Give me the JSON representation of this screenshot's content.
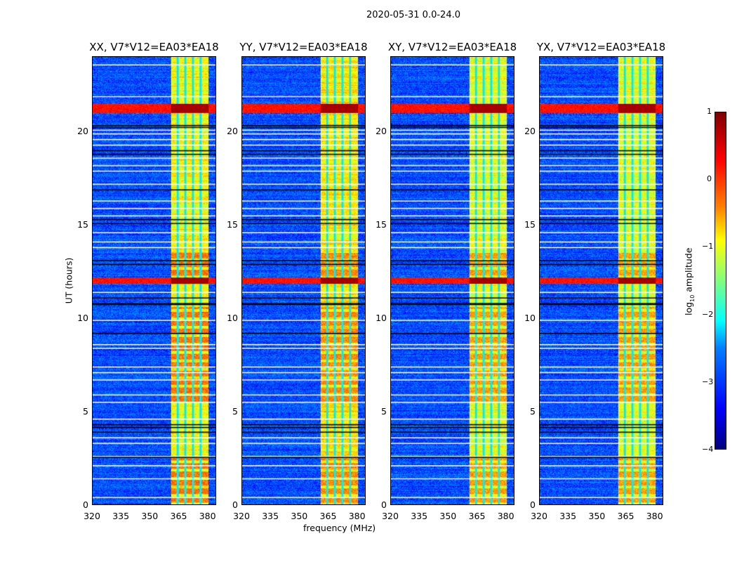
{
  "chart_data": {
    "type": "heatmap",
    "title": "2020-05-31 0.0-24.0",
    "xlabel": "frequency (MHz)",
    "ylabel": "UT (hours)",
    "xlim": [
      320,
      384.5
    ],
    "ylim": [
      0,
      24
    ],
    "xticks": [
      "320",
      "335",
      "350",
      "365",
      "380"
    ],
    "xtick_values": [
      320,
      335,
      350,
      365,
      380
    ],
    "yticks": [
      "0",
      "5",
      "10",
      "15",
      "20"
    ],
    "ytick_values": [
      0,
      5,
      10,
      15,
      20
    ],
    "panels": [
      {
        "title": "XX, V7*V12=EA03*EA18",
        "rfi_level": -0.9,
        "burst_level": -0.2
      },
      {
        "title": "YY, V7*V12=EA03*EA18",
        "rfi_level": -0.8,
        "burst_level": -0.3
      },
      {
        "title": "XY, V7*V12=EA03*EA18",
        "rfi_level": -1.0,
        "burst_level": -0.4
      },
      {
        "title": "YX, V7*V12=EA03*EA18",
        "rfi_level": -1.0,
        "burst_level": -0.4
      }
    ],
    "background_level": -3.0,
    "rfi_band_mhz": [
      361,
      380.5
    ],
    "subband_gaps_mhz": [
      364.5,
      368.5,
      372.5,
      376.5
    ],
    "strong_rfi_hours": [
      [
        21.0,
        21.5
      ],
      [
        11.85,
        12.2
      ]
    ],
    "burst_hours": [
      [
        0,
        2.5
      ],
      [
        5.5,
        10.6
      ],
      [
        12.2,
        13.6
      ]
    ],
    "flagged_white_hours": [
      23.6,
      21.9,
      20.1,
      19.9,
      19.6,
      19.3,
      18.6,
      18.2,
      17.9,
      17.2,
      16.3,
      15.9,
      15.5,
      14.6,
      14.1,
      13.8,
      11.4,
      9.9,
      8.6,
      8.4,
      7.4,
      7.1,
      6.7,
      5.9,
      5.5,
      4.6,
      3.6,
      3.3,
      2.6,
      2.1,
      1.4,
      0.4
    ],
    "flagged_black_hours": [
      20.35,
      20.25,
      19.0,
      18.8,
      16.9,
      15.3,
      15.1,
      13.1,
      12.9,
      11.1,
      10.8,
      10.75,
      9.2,
      4.3,
      4.15,
      3.9,
      2.55
    ],
    "colorbar": {
      "label": "log10 amplitude",
      "range": [
        -4,
        1
      ],
      "ticks": [
        "1",
        "0",
        "−1",
        "−2",
        "−3",
        "−4"
      ],
      "tick_values": [
        1,
        0,
        -1,
        -2,
        -3,
        -4
      ],
      "colormap": "jet"
    }
  }
}
